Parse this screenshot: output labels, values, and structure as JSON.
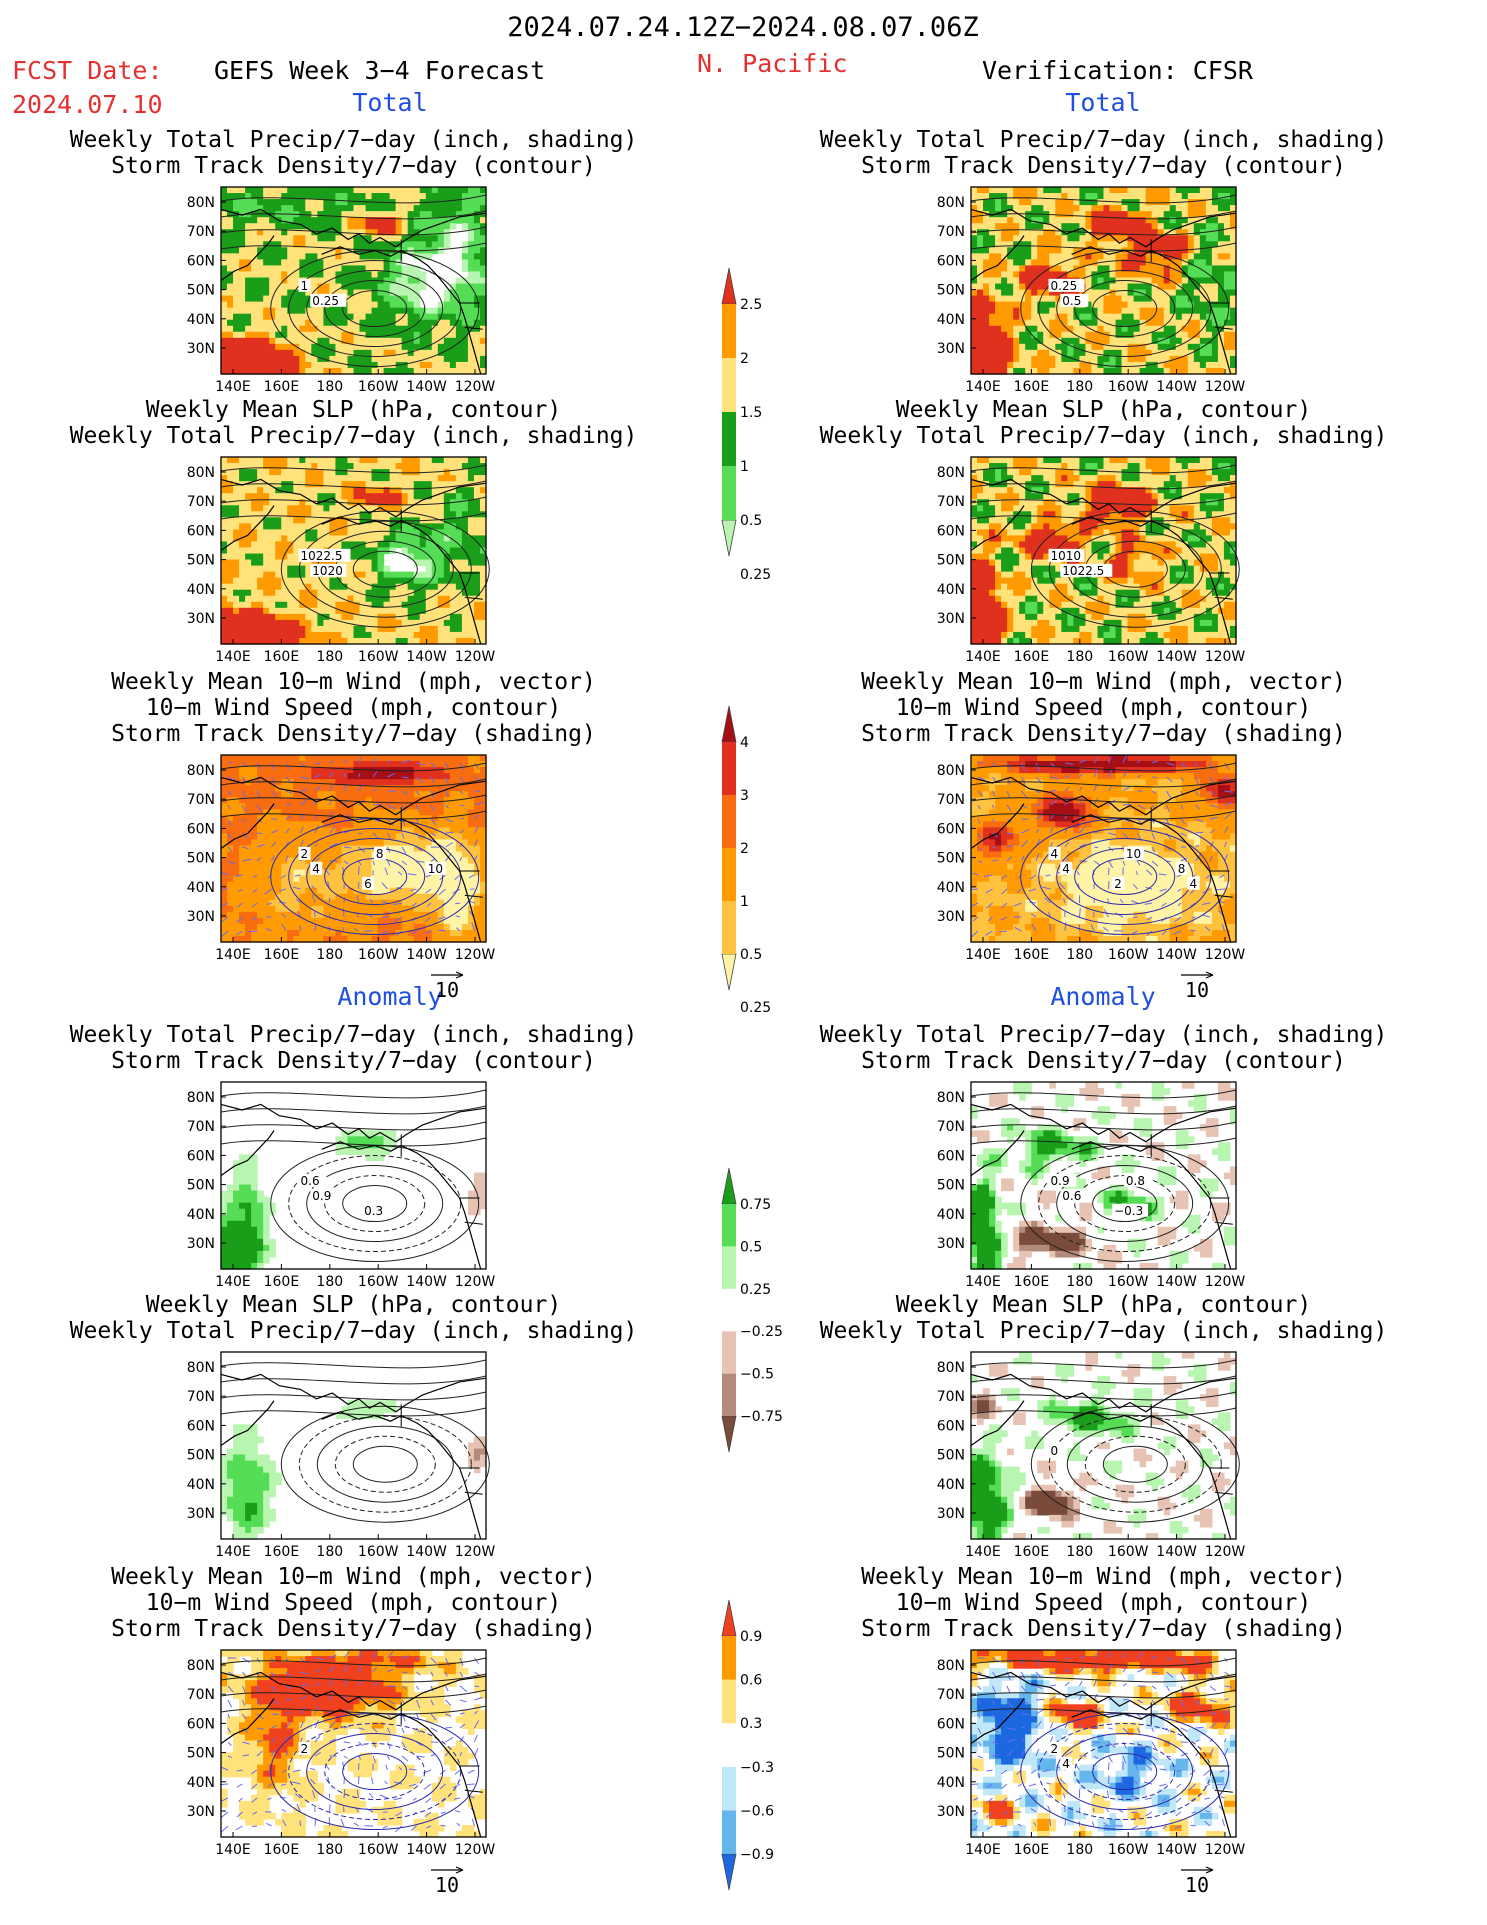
{
  "header": {
    "period": "2024.07.24.12Z−2024.08.07.06Z",
    "fcst_label": "FCST Date:",
    "fcst_date": "2024.07.10",
    "forecast_title": "GEFS Week 3−4 Forecast",
    "region": "N. Pacific",
    "verification": "Verification: CFSR"
  },
  "sections": {
    "total": "Total",
    "anomaly": "Anomaly"
  },
  "panel_titles": {
    "precip_storm": [
      "Weekly Total Precip/7−day (inch, shading)",
      "Storm Track Density/7−day (contour)"
    ],
    "slp_precip": [
      "Weekly Mean SLP (hPa, contour)",
      "Weekly Total Precip/7−day (inch, shading)"
    ],
    "wind_storm": [
      "Weekly Mean 10−m Wind (mph, vector)",
      "10−m Wind Speed (mph, contour)",
      "Storm Track Density/7−day (shading)"
    ]
  },
  "axes": {
    "lat_ticks": [
      "80N",
      "70N",
      "60N",
      "50N",
      "40N",
      "30N"
    ],
    "lon_ticks": [
      "140E",
      "160E",
      "180",
      "160W",
      "140W",
      "120W"
    ]
  },
  "vector_ref": "10",
  "colorbars": {
    "precip_total": {
      "labels": [
        "2.5",
        "2",
        "1.5",
        "1",
        "0.5",
        "0.25"
      ],
      "colors": [
        "#e0301e",
        "#ff9b00",
        "#ffe27a",
        "#1a9e1a",
        "#55dd55",
        "#b8f5b0"
      ]
    },
    "storm_total": {
      "labels": [
        "4",
        "3",
        "2",
        "1",
        "0.5",
        "0.25"
      ],
      "colors": [
        "#a50f15",
        "#e0301e",
        "#f76d0f",
        "#ff9b00",
        "#ffc23f",
        "#fff3a6"
      ]
    },
    "precip_anom": {
      "labels": [
        "0.75",
        "0.5",
        "0.25",
        "−0.25",
        "−0.5",
        "−0.75"
      ],
      "colors": [
        "#1a9e1a",
        "#55dd55",
        "#b8f5b0",
        "#ffffff",
        "#e7c3b3",
        "#b48a7b",
        "#7a4a3a"
      ]
    },
    "storm_anom": {
      "labels": [
        "0.9",
        "0.6",
        "0.3",
        "−0.3",
        "−0.6",
        "−0.9"
      ],
      "colors": [
        "#f0401e",
        "#ff9b00",
        "#ffe27a",
        "#ffffff",
        "#bfe7f7",
        "#66b6ee",
        "#1b68e0"
      ]
    }
  },
  "contour_labels": {
    "p1": [
      "1",
      "0.25"
    ],
    "p2": [
      "0.25",
      "0.5"
    ],
    "p3": [
      "1022.5",
      "1020"
    ],
    "p4": [
      "1010",
      "1022.5"
    ],
    "p5": [
      "2",
      "4",
      "6",
      "8",
      "10"
    ],
    "p6": [
      "4",
      "4",
      "2",
      "10",
      "8",
      "4"
    ],
    "p7": [
      "0.6",
      "0.9",
      "0.3"
    ],
    "p8": [
      "0.9",
      "0.6",
      "−0.3",
      "0.8"
    ],
    "p10": [
      "0"
    ],
    "p11": [
      "2"
    ],
    "p12": [
      "2",
      "4"
    ]
  }
}
